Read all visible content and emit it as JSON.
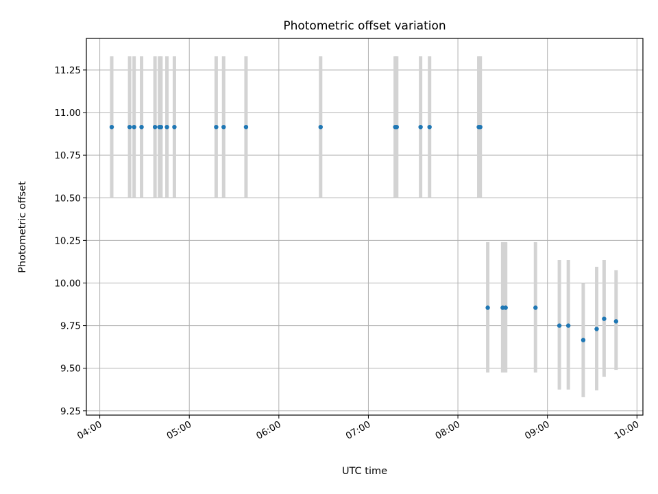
{
  "chart_data": {
    "type": "scatter",
    "title": "Photometric offset variation",
    "xlabel": "UTC time",
    "ylabel": "Photometric offset",
    "grid": true,
    "xlim": [
      "03:51",
      "10:04"
    ],
    "ylim": [
      9.225,
      11.435
    ],
    "x_ticks": [
      "04:00",
      "05:00",
      "06:00",
      "07:00",
      "08:00",
      "09:00",
      "10:00"
    ],
    "y_ticks": [
      "9.25",
      "9.50",
      "9.75",
      "10.00",
      "10.25",
      "10.50",
      "10.75",
      "11.00",
      "11.25"
    ],
    "point_color": "#1f77b4",
    "errorbar_color": "#d3d3d3",
    "series": [
      {
        "x": [
          "04:08",
          "04:20",
          "04:23",
          "04:28",
          "04:37",
          "04:40",
          "04:41",
          "04:45",
          "04:50",
          "05:18",
          "05:23",
          "05:38",
          "06:28",
          "07:18",
          "07:19",
          "07:35",
          "07:41",
          "08:14",
          "08:15",
          "08:20",
          "08:30",
          "08:32",
          "08:52",
          "09:08",
          "09:14",
          "09:24",
          "09:33",
          "09:38",
          "09:46"
        ],
        "y": [
          10.915,
          10.915,
          10.915,
          10.915,
          10.915,
          10.915,
          10.915,
          10.915,
          10.915,
          10.915,
          10.915,
          10.915,
          10.915,
          10.915,
          10.915,
          10.915,
          10.915,
          10.915,
          10.915,
          9.855,
          9.855,
          9.855,
          9.855,
          9.75,
          9.75,
          9.665,
          9.73,
          9.79,
          9.775
        ],
        "err_low": [
          10.5,
          10.5,
          10.5,
          10.5,
          10.5,
          10.5,
          10.5,
          10.5,
          10.5,
          10.5,
          10.5,
          10.5,
          10.5,
          10.5,
          10.5,
          10.5,
          10.5,
          10.5,
          10.5,
          9.475,
          9.475,
          9.475,
          9.475,
          9.375,
          9.375,
          9.33,
          9.37,
          9.45,
          9.49
        ],
        "err_high": [
          11.33,
          11.33,
          11.33,
          11.33,
          11.33,
          11.33,
          11.33,
          11.33,
          11.33,
          11.33,
          11.33,
          11.33,
          11.33,
          11.33,
          11.33,
          11.33,
          11.33,
          11.33,
          11.33,
          10.24,
          10.24,
          10.24,
          10.24,
          10.135,
          10.135,
          10.0,
          10.095,
          10.135,
          10.075
        ]
      }
    ]
  }
}
